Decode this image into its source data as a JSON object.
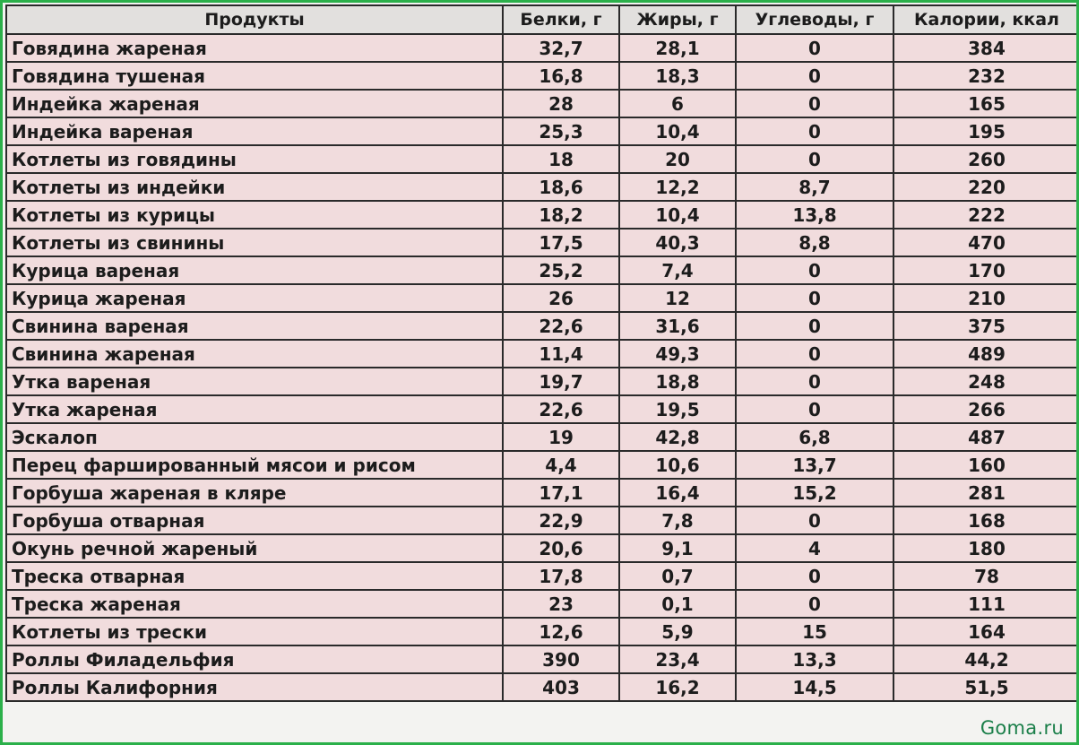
{
  "table": {
    "headers": [
      "Продукты",
      "Белки, г",
      "Жиры, г",
      "Углеводы, г",
      "Калории, ккал"
    ],
    "rows": [
      [
        "Говядина жареная",
        "32,7",
        "28,1",
        "0",
        "384"
      ],
      [
        "Говядина тушеная",
        "16,8",
        "18,3",
        "0",
        "232"
      ],
      [
        "Индейка жареная",
        "28",
        "6",
        "0",
        "165"
      ],
      [
        "Индейка вареная",
        "25,3",
        "10,4",
        "0",
        "195"
      ],
      [
        "Котлеты из говядины",
        "18",
        "20",
        "0",
        "260"
      ],
      [
        "Котлеты из индейки",
        "18,6",
        "12,2",
        "8,7",
        "220"
      ],
      [
        "Котлеты из курицы",
        "18,2",
        "10,4",
        "13,8",
        "222"
      ],
      [
        "Котлеты из свинины",
        "17,5",
        "40,3",
        "8,8",
        "470"
      ],
      [
        "Курица вареная",
        "25,2",
        "7,4",
        "0",
        "170"
      ],
      [
        "Курица жареная",
        "26",
        "12",
        "0",
        "210"
      ],
      [
        "Свинина вареная",
        "22,6",
        "31,6",
        "0",
        "375"
      ],
      [
        "Свинина жареная",
        "11,4",
        "49,3",
        "0",
        "489"
      ],
      [
        "Утка вареная",
        "19,7",
        "18,8",
        "0",
        "248"
      ],
      [
        "Утка жареная",
        "22,6",
        "19,5",
        "0",
        "266"
      ],
      [
        "Эскалоп",
        "19",
        "42,8",
        "6,8",
        "487"
      ],
      [
        "Перец фаршированный мясои и рисом",
        "4,4",
        "10,6",
        "13,7",
        "160"
      ],
      [
        "Горбуша жареная в кляре",
        "17,1",
        "16,4",
        "15,2",
        "281"
      ],
      [
        "Горбуша отварная",
        "22,9",
        "7,8",
        "0",
        "168"
      ],
      [
        "Окунь речной жареный",
        "20,6",
        "9,1",
        "4",
        "180"
      ],
      [
        "Треска отварная",
        "17,8",
        "0,7",
        "0",
        "78"
      ],
      [
        "Треска жареная",
        "23",
        "0,1",
        "0",
        "111"
      ],
      [
        "Котлеты из трески",
        "12,6",
        "5,9",
        "15",
        "164"
      ],
      [
        "Роллы Филадельфия",
        "390",
        "23,4",
        "13,3",
        "44,2"
      ],
      [
        "Роллы Калифорния",
        "403",
        "16,2",
        "14,5",
        "51,5"
      ]
    ]
  },
  "watermark": "Goma.ru",
  "colors": {
    "frame_border": "#2bb04a",
    "header_bg": "#e2e0de",
    "row_bg": "#f1dcdd",
    "grid": "#2a2a2a",
    "watermark": "#1b7f4a"
  }
}
